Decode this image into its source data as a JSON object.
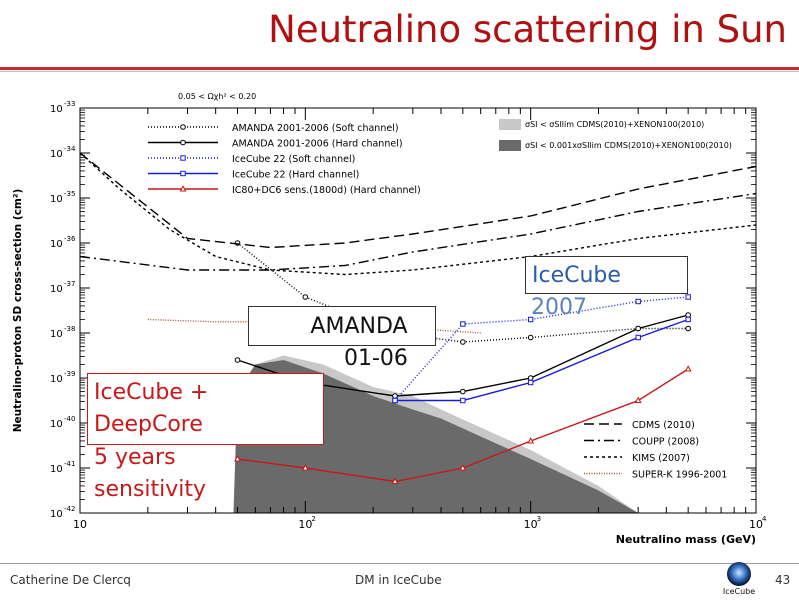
{
  "slide": {
    "title": "Neutralino scattering in Sun",
    "author": "Catherine De Clercq",
    "center_text": "DM in IceCube",
    "page_number": "43",
    "logo_text": "IceCube"
  },
  "callouts": {
    "amanda": [
      "AMANDA",
      "01-06"
    ],
    "icecube2007": [
      "IceCube",
      "2007"
    ],
    "deepcore": [
      "IceCube +",
      "DeepCore",
      "5 years",
      "sensitivity"
    ]
  },
  "colors": {
    "title": "#b01010",
    "callout_red": "#c81818",
    "callout_blue": "#2b5ca8",
    "series_blue": "#1a1adc",
    "series_red": "#c81818",
    "band_light": "#c8c8c8",
    "band_dark": "#6a6a6a"
  },
  "chart_data": {
    "type": "line",
    "xscale": "log",
    "yscale": "log",
    "xlim": [
      10,
      10000
    ],
    "ylim_exp": [
      -42,
      -33
    ],
    "xlabel": "Neutralino mass (GeV)",
    "ylabel": "Neutralino-proton SD cross-section (cm²)",
    "x_ticks": [
      {
        "v": 10,
        "label": "10"
      },
      {
        "v": 100,
        "label": "10",
        "sup": "2"
      },
      {
        "v": 1000,
        "label": "10",
        "sup": "3"
      },
      {
        "v": 10000,
        "label": "10",
        "sup": "4"
      }
    ],
    "y_ticks": [
      -42,
      -41,
      -40,
      -39,
      -38,
      -37,
      -36,
      -35,
      -34,
      -33
    ],
    "annotation": "0.05 < Ωχh² < 0.20",
    "legend_left": [
      {
        "label": "AMANDA 2001-2006 (Soft channel)",
        "color": "#000000",
        "dash": "1,2",
        "marker": "circle"
      },
      {
        "label": "AMANDA 2001-2006 (Hard channel)",
        "color": "#000000",
        "dash": "",
        "marker": "circle"
      },
      {
        "label": "IceCube 22 (Soft channel)",
        "color": "#1a1adc",
        "dash": "1,2",
        "marker": "square"
      },
      {
        "label": "IceCube 22 (Hard channel)",
        "color": "#1a1adc",
        "dash": "",
        "marker": "square"
      },
      {
        "label": "IC80+DC6 sens.(1800d) (Hard channel)",
        "color": "#c81818",
        "dash": "",
        "marker": "triangle"
      }
    ],
    "legend_bands": [
      {
        "label": "σSI < σSIlim CDMS(2010)+XENON100(2010)",
        "color": "#c8c8c8"
      },
      {
        "label": "σSI < 0.001xσSIlim CDMS(2010)+XENON100(2010)",
        "color": "#6a6a6a"
      }
    ],
    "legend_experiments": [
      {
        "label": "CDMS (2010)",
        "dash": "10,5",
        "color": "#000000"
      },
      {
        "label": "COUPP (2008)",
        "dash": "10,4,2,4",
        "color": "#000000"
      },
      {
        "label": "KIMS (2007)",
        "dash": "3,3",
        "color": "#000000"
      },
      {
        "label": "SUPER-K 1996-2001",
        "dash": "1,1.5",
        "color": "#a0522d"
      }
    ],
    "series": [
      {
        "name": "AMANDA 2001-2006 (Soft channel)",
        "color": "#000000",
        "dash": "1,2",
        "marker": "circle",
        "x": [
          50,
          100,
          250,
          500,
          1000,
          3000,
          5000
        ],
        "y_exp": [
          -36.0,
          -37.2,
          -38.0,
          -38.2,
          -38.1,
          -37.9,
          -37.9
        ]
      },
      {
        "name": "AMANDA 2001-2006 (Hard channel)",
        "color": "#000000",
        "dash": "",
        "marker": "circle",
        "x": [
          50,
          100,
          250,
          500,
          1000,
          3000,
          5000
        ],
        "y_exp": [
          -38.6,
          -39.1,
          -39.4,
          -39.3,
          -39.0,
          -37.9,
          -37.6
        ]
      },
      {
        "name": "IceCube 22 (Soft channel)",
        "color": "#1a1adc",
        "dash": "1,2",
        "marker": "square",
        "x": [
          250,
          500,
          1000,
          3000,
          5000
        ],
        "y_exp": [
          -39.5,
          -37.8,
          -37.7,
          -37.3,
          -37.2
        ]
      },
      {
        "name": "IceCube 22 (Hard channel)",
        "color": "#1a1adc",
        "dash": "",
        "marker": "square",
        "x": [
          250,
          500,
          1000,
          3000,
          5000
        ],
        "y_exp": [
          -39.5,
          -39.5,
          -39.1,
          -38.1,
          -37.7
        ]
      },
      {
        "name": "IC80+DC6 sens.(1800d) (Hard channel)",
        "color": "#c81818",
        "dash": "",
        "marker": "triangle",
        "x": [
          50,
          100,
          250,
          500,
          1000,
          3000,
          5000
        ],
        "y_exp": [
          -40.8,
          -41.0,
          -41.3,
          -41.0,
          -40.4,
          -39.5,
          -38.8
        ]
      },
      {
        "name": "CDMS (2010)",
        "color": "#000000",
        "dash": "10,5",
        "marker": "none",
        "x": [
          10,
          30,
          70,
          150,
          300,
          1000,
          3000,
          10000
        ],
        "y_exp": [
          -34.0,
          -35.9,
          -36.1,
          -36.0,
          -35.8,
          -35.4,
          -34.8,
          -34.3
        ]
      },
      {
        "name": "COUPP (2008)",
        "color": "#000000",
        "dash": "10,4,2,4",
        "marker": "none",
        "x": [
          10,
          30,
          70,
          150,
          300,
          1000,
          3000,
          10000
        ],
        "y_exp": [
          -36.3,
          -36.6,
          -36.6,
          -36.5,
          -36.2,
          -35.8,
          -35.3,
          -34.9
        ]
      },
      {
        "name": "KIMS (2007)",
        "color": "#000000",
        "dash": "3,3",
        "marker": "none",
        "x": [
          10,
          15,
          25,
          40,
          70,
          150,
          300,
          1000,
          3000,
          10000
        ],
        "y_exp": [
          -34.0,
          -34.8,
          -35.7,
          -36.3,
          -36.6,
          -36.7,
          -36.6,
          -36.3,
          -35.9,
          -35.6
        ]
      },
      {
        "name": "SUPER-K 1996-2001",
        "color": "#a0522d",
        "dash": "1,1.5",
        "marker": "none",
        "x": [
          20,
          40,
          80,
          150,
          300,
          600
        ],
        "y_exp": [
          -37.7,
          -37.75,
          -37.75,
          -37.8,
          -37.9,
          -38.0
        ]
      }
    ],
    "bands": [
      {
        "name": "light",
        "color": "#c8c8c8",
        "points": [
          [
            48,
            -42
          ],
          [
            50,
            -39.3
          ],
          [
            60,
            -38.7
          ],
          [
            80,
            -38.5
          ],
          [
            120,
            -38.7
          ],
          [
            200,
            -39.2
          ],
          [
            300,
            -39.4
          ],
          [
            400,
            -39.7
          ],
          [
            600,
            -40.1
          ],
          [
            1000,
            -40.6
          ],
          [
            2000,
            -41.4
          ],
          [
            3000,
            -42
          ]
        ]
      },
      {
        "name": "dark",
        "color": "#6a6a6a",
        "points": [
          [
            48,
            -42
          ],
          [
            50,
            -39.3
          ],
          [
            60,
            -38.7
          ],
          [
            80,
            -38.6
          ],
          [
            120,
            -38.9
          ],
          [
            200,
            -39.4
          ],
          [
            300,
            -39.7
          ],
          [
            400,
            -39.9
          ],
          [
            600,
            -40.3
          ],
          [
            1000,
            -40.8
          ],
          [
            2000,
            -41.5
          ],
          [
            3000,
            -42
          ]
        ]
      }
    ]
  }
}
